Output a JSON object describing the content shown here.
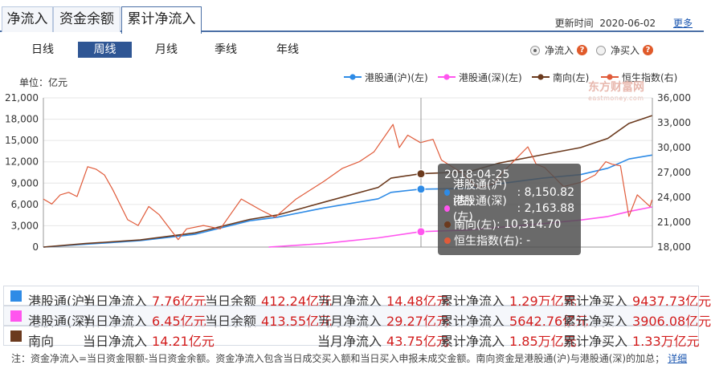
{
  "tabs": [
    {
      "label": "净流入",
      "active": false
    },
    {
      "label": "资金余额",
      "active": false
    },
    {
      "label": "累计净流入",
      "active": true
    }
  ],
  "update": {
    "label": "更新时间",
    "date": "2020-06-02",
    "more": "更多"
  },
  "periods": [
    {
      "label": "日线",
      "active": false
    },
    {
      "label": "周线",
      "active": true
    },
    {
      "label": "月线",
      "active": false
    },
    {
      "label": "季线",
      "active": false
    },
    {
      "label": "年线",
      "active": false
    }
  ],
  "options": [
    {
      "label": "净流入",
      "selected": true,
      "help": "?"
    },
    {
      "label": "净买入",
      "selected": false,
      "help": "?"
    }
  ],
  "unit": "单位：亿元",
  "watermark": {
    "main": "东方财富网",
    "sub": "eastmoney.com"
  },
  "colors": {
    "hgt": "#2e8be6",
    "sgt": "#ff55ee",
    "south": "#6b3a1e",
    "hsi": "#e05b3a"
  },
  "chart_data": {
    "type": "line",
    "x_range": [
      "2014-11-17",
      "2020-06-02"
    ],
    "ylim_left": [
      0,
      21000
    ],
    "ylim_right": [
      18000,
      36000
    ],
    "yticks_left": [
      "0",
      "3,000",
      "6,000",
      "9,000",
      "12,000",
      "15,000",
      "18,000",
      "21,000"
    ],
    "yticks_right": [
      "18,000",
      "21,000",
      "24,000",
      "27,000",
      "30,000",
      "33,000",
      "36,000"
    ],
    "grid": true,
    "legend_position": "top-right",
    "series": [
      {
        "name": "港股通(沪)(左)",
        "axis": "left",
        "color": "#2e8be6",
        "points": [
          [
            "2014-11-17",
            0
          ],
          [
            "2015-04-06",
            400
          ],
          [
            "2015-10-05",
            900
          ],
          [
            "2016-04-04",
            1800
          ],
          [
            "2016-10-03",
            3700
          ],
          [
            "2017-01-02",
            4200
          ],
          [
            "2017-06-05",
            5500
          ],
          [
            "2017-12-04",
            6800
          ],
          [
            "2018-01-15",
            7700
          ],
          [
            "2018-04-23",
            8150.82
          ],
          [
            "2018-10-01",
            8250
          ],
          [
            "2019-01-07",
            8900
          ],
          [
            "2019-06-03",
            9700
          ],
          [
            "2019-10-07",
            10200
          ],
          [
            "2020-01-06",
            11100
          ],
          [
            "2020-03-16",
            12400
          ],
          [
            "2020-06-01",
            12950
          ]
        ]
      },
      {
        "name": "港股通(深)(左)",
        "axis": "left",
        "color": "#ff55ee",
        "points": [
          [
            "2016-12-05",
            0
          ],
          [
            "2017-06-05",
            500
          ],
          [
            "2017-12-04",
            1300
          ],
          [
            "2018-04-23",
            2163.88
          ],
          [
            "2018-10-01",
            2400
          ],
          [
            "2019-06-03",
            3300
          ],
          [
            "2019-10-07",
            3800
          ],
          [
            "2020-01-06",
            4300
          ],
          [
            "2020-03-16",
            5000
          ],
          [
            "2020-06-01",
            5643
          ]
        ]
      },
      {
        "name": "南向(左)",
        "axis": "left",
        "color": "#6b3a1e",
        "points": [
          [
            "2014-11-17",
            0
          ],
          [
            "2015-04-06",
            500
          ],
          [
            "2015-10-05",
            1000
          ],
          [
            "2016-04-04",
            2000
          ],
          [
            "2016-10-03",
            3900
          ],
          [
            "2017-01-02",
            4500
          ],
          [
            "2017-06-05",
            6300
          ],
          [
            "2017-12-04",
            8400
          ],
          [
            "2018-01-15",
            9700
          ],
          [
            "2018-04-23",
            10314.7
          ],
          [
            "2018-10-01",
            10600
          ],
          [
            "2019-01-07",
            11800
          ],
          [
            "2019-06-03",
            13000
          ],
          [
            "2019-10-07",
            14000
          ],
          [
            "2020-01-06",
            15300
          ],
          [
            "2020-03-16",
            17400
          ],
          [
            "2020-06-01",
            18500
          ]
        ]
      },
      {
        "name": "恒生指数(右)",
        "axis": "right",
        "color": "#e05b3a",
        "points": [
          [
            "2014-11-17",
            23800
          ],
          [
            "2014-12-15",
            23200
          ],
          [
            "2015-01-12",
            24300
          ],
          [
            "2015-02-09",
            24600
          ],
          [
            "2015-03-09",
            24100
          ],
          [
            "2015-04-13",
            27700
          ],
          [
            "2015-05-11",
            27400
          ],
          [
            "2015-06-08",
            26700
          ],
          [
            "2015-07-06",
            24900
          ],
          [
            "2015-08-24",
            21300
          ],
          [
            "2015-09-28",
            20600
          ],
          [
            "2015-11-02",
            22900
          ],
          [
            "2015-12-07",
            21900
          ],
          [
            "2016-02-08",
            18900
          ],
          [
            "2016-03-07",
            20200
          ],
          [
            "2016-05-02",
            20600
          ],
          [
            "2016-06-27",
            20200
          ],
          [
            "2016-09-05",
            23800
          ],
          [
            "2016-11-07",
            22500
          ],
          [
            "2016-12-26",
            21600
          ],
          [
            "2017-03-06",
            23800
          ],
          [
            "2017-06-05",
            25900
          ],
          [
            "2017-08-07",
            27500
          ],
          [
            "2017-10-02",
            28300
          ],
          [
            "2017-11-20",
            29500
          ],
          [
            "2018-01-22",
            32800
          ],
          [
            "2018-02-12",
            30000
          ],
          [
            "2018-03-12",
            31500
          ],
          [
            "2018-04-23",
            30600
          ],
          [
            "2018-06-04",
            31000
          ],
          [
            "2018-07-02",
            28500
          ],
          [
            "2018-09-10",
            26900
          ],
          [
            "2018-10-29",
            25200
          ],
          [
            "2018-12-24",
            25600
          ],
          [
            "2019-01-21",
            27000
          ],
          [
            "2019-04-15",
            30100
          ],
          [
            "2019-05-13",
            28000
          ],
          [
            "2019-06-10",
            27600
          ],
          [
            "2019-08-12",
            25300
          ],
          [
            "2019-10-07",
            25800
          ],
          [
            "2019-11-25",
            26700
          ],
          [
            "2019-12-30",
            28300
          ],
          [
            "2020-01-20",
            28000
          ],
          [
            "2020-02-17",
            27800
          ],
          [
            "2020-03-16",
            21700
          ],
          [
            "2020-04-13",
            24300
          ],
          [
            "2020-05-25",
            22900
          ],
          [
            "2020-06-01",
            23700
          ]
        ]
      }
    ],
    "tooltip": {
      "date": "2018-04-25",
      "items": [
        {
          "label": "港股通(沪)(左)",
          "value": "8,150.82",
          "color": "#2e8be6"
        },
        {
          "label": "港股通(深)(左)",
          "value": "2,163.88",
          "color": "#ff55ee"
        },
        {
          "label": "南向(左)",
          "value": "10,314.70",
          "color": "#6b3a1e"
        },
        {
          "label": "恒生指数(右)",
          "value": "-",
          "color": "#e05b3a"
        }
      ]
    }
  },
  "summary": [
    {
      "name": "港股通(沪)",
      "color": "#2e8be6",
      "day_in_label": "当日净流入",
      "day_in": "7.76亿元",
      "balance_label": "当日余额",
      "balance": "412.24亿元",
      "month_label": "当月净流入",
      "month": "14.48亿元",
      "cum_in_label": "累计净流入",
      "cum_in": "1.29万亿元",
      "cum_buy_label": "累计净买入",
      "cum_buy": "9437.73亿元"
    },
    {
      "name": "港股通(深)",
      "color": "#ff55ee",
      "day_in_label": "当日净流入",
      "day_in": "6.45亿元",
      "balance_label": "当日余额",
      "balance": "413.55亿元",
      "month_label": "当月净流入",
      "month": "29.27亿元",
      "cum_in_label": "累计净流入",
      "cum_in": "5642.76亿元",
      "cum_buy_label": "累计净买入",
      "cum_buy": "3906.08亿元"
    },
    {
      "name": "南向",
      "color": "#6b3a1e",
      "day_in_label": "当日净流入",
      "day_in": "14.21亿元",
      "balance_label": "",
      "balance": "",
      "month_label": "当月净流入",
      "month": "43.75亿元",
      "cum_in_label": "累计净流入",
      "cum_in": "1.85万亿元",
      "cum_buy_label": "累计净买入",
      "cum_buy": "1.33万亿元"
    }
  ],
  "note": {
    "text": "注：资金净流入=当日资金限额-当日资金余额。资金净流入包含当日成交买入额和当日买入申报未成交金额。南向资金是港股通(沪)与港股通(深)的加总；",
    "link": "详细"
  }
}
